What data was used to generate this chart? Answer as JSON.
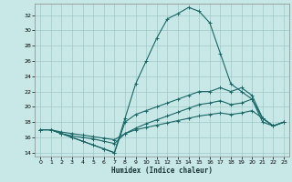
{
  "xlabel": "Humidex (Indice chaleur)",
  "background_color": "#c8e8e8",
  "grid_color": "#a0c8c8",
  "line_color": "#1a6666",
  "xlim": [
    -0.5,
    23.5
  ],
  "ylim": [
    13.5,
    33.5
  ],
  "yticks": [
    14,
    16,
    18,
    20,
    22,
    24,
    26,
    28,
    30,
    32
  ],
  "xticks": [
    0,
    1,
    2,
    3,
    4,
    5,
    6,
    7,
    8,
    9,
    10,
    11,
    12,
    13,
    14,
    15,
    16,
    17,
    18,
    19,
    20,
    21,
    22,
    23
  ],
  "lines": [
    {
      "x": [
        0,
        1,
        2,
        3,
        4,
        5,
        6,
        7,
        8,
        9,
        10,
        11,
        12,
        13,
        14,
        15,
        16,
        17,
        18,
        19,
        20,
        21,
        22,
        23
      ],
      "y": [
        17,
        17,
        16.5,
        16,
        15.5,
        15,
        14.5,
        14,
        18.5,
        23,
        26,
        29,
        31.5,
        32.2,
        33,
        32.5,
        31,
        27,
        23,
        22,
        21,
        18,
        17.5,
        18
      ]
    },
    {
      "x": [
        0,
        1,
        2,
        3,
        4,
        5,
        6,
        7,
        8,
        9,
        10,
        11,
        12,
        13,
        14,
        15,
        16,
        17,
        18,
        19,
        20,
        21,
        22,
        23
      ],
      "y": [
        17,
        17,
        16.5,
        16,
        15.5,
        15,
        14.5,
        14,
        18,
        19,
        19.5,
        20,
        20.5,
        21,
        21.5,
        22,
        22,
        22.5,
        22,
        22.5,
        21.5,
        18.5,
        17.5,
        18
      ]
    },
    {
      "x": [
        0,
        1,
        2,
        3,
        4,
        5,
        6,
        7,
        8,
        9,
        10,
        11,
        12,
        13,
        14,
        15,
        16,
        17,
        18,
        19,
        20,
        21,
        22,
        23
      ],
      "y": [
        17,
        17,
        16.5,
        16.2,
        16,
        15.8,
        15.5,
        15.2,
        16.5,
        17.2,
        17.8,
        18.3,
        18.8,
        19.3,
        19.8,
        20.3,
        20.5,
        20.8,
        20.3,
        20.5,
        21,
        18.5,
        17.5,
        18
      ]
    },
    {
      "x": [
        0,
        1,
        2,
        3,
        4,
        5,
        6,
        7,
        8,
        9,
        10,
        11,
        12,
        13,
        14,
        15,
        16,
        17,
        18,
        19,
        20,
        21,
        22,
        23
      ],
      "y": [
        17,
        17,
        16.7,
        16.5,
        16.3,
        16.1,
        15.9,
        15.7,
        16.5,
        17,
        17.3,
        17.6,
        17.9,
        18.2,
        18.5,
        18.8,
        19,
        19.2,
        19,
        19.2,
        19.5,
        18.5,
        17.5,
        18
      ]
    }
  ]
}
